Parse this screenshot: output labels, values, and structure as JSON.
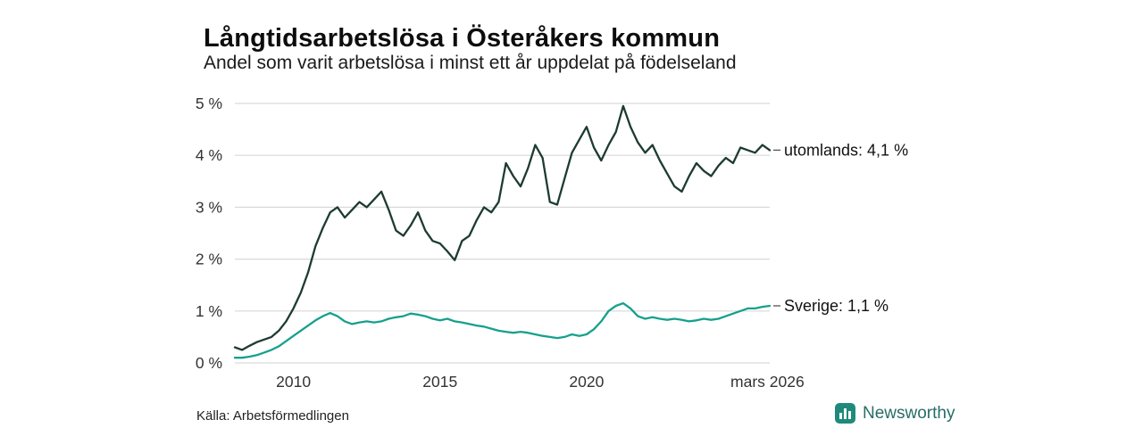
{
  "header": {
    "title": "Långtidsarbetslösa i Österåkers kommun",
    "subtitle": "Andel som varit arbetslösa i minst ett år uppdelat på födelseland"
  },
  "footer": {
    "source": "Källa: Arbetsförmedlingen",
    "brand": "Newsworthy"
  },
  "colors": {
    "utomlands_line": "#1d3b32",
    "sverige_line": "#17a08c",
    "grid": "#d9d9d9",
    "tick_text": "#333333",
    "label_text": "#111111",
    "brand_teal": "#1f8a7b"
  },
  "chart_data": {
    "type": "line",
    "title": "Långtidsarbetslösa i Österåkers kommun",
    "subtitle": "Andel som varit arbetslösa i minst ett år uppdelat på födelseland",
    "grid": true,
    "legend_position": "end-labels-right",
    "xlim": [
      2008,
      2026.25
    ],
    "ylim": [
      0,
      5
    ],
    "x_ticks": [
      {
        "x": 2010,
        "label": "2010"
      },
      {
        "x": 2015,
        "label": "2015"
      },
      {
        "x": 2020,
        "label": "2020"
      },
      {
        "x": 2026.17,
        "label": "mars 2026"
      }
    ],
    "y_ticks": [
      {
        "y": 0,
        "label": "0 %"
      },
      {
        "y": 1,
        "label": "1 %"
      },
      {
        "y": 2,
        "label": "2 %"
      },
      {
        "y": 3,
        "label": "3 %"
      },
      {
        "y": 4,
        "label": "4 %"
      },
      {
        "y": 5,
        "label": "5 %"
      }
    ],
    "x": [
      2008,
      2008.25,
      2008.5,
      2008.75,
      2009,
      2009.25,
      2009.5,
      2009.75,
      2010,
      2010.25,
      2010.5,
      2010.75,
      2011,
      2011.25,
      2011.5,
      2011.75,
      2012,
      2012.25,
      2012.5,
      2012.75,
      2013,
      2013.25,
      2013.5,
      2013.75,
      2014,
      2014.25,
      2014.5,
      2014.75,
      2015,
      2015.25,
      2015.5,
      2015.75,
      2016,
      2016.25,
      2016.5,
      2016.75,
      2017,
      2017.25,
      2017.5,
      2017.75,
      2018,
      2018.25,
      2018.5,
      2018.75,
      2019,
      2019.25,
      2019.5,
      2019.75,
      2020,
      2020.25,
      2020.5,
      2020.75,
      2021,
      2021.25,
      2021.5,
      2021.75,
      2022,
      2022.25,
      2022.5,
      2022.75,
      2023,
      2023.25,
      2023.5,
      2023.75,
      2024,
      2024.25,
      2024.5,
      2024.75,
      2025,
      2025.25,
      2025.5,
      2025.75,
      2026,
      2026.25
    ],
    "series": [
      {
        "name": "utomlands",
        "label": "utomlands: 4,1 %",
        "last_value": "4,1 %",
        "color": "#1d3b32",
        "values": [
          0.3,
          0.25,
          0.33,
          0.4,
          0.45,
          0.5,
          0.62,
          0.8,
          1.05,
          1.35,
          1.75,
          2.25,
          2.6,
          2.9,
          3.0,
          2.8,
          2.95,
          3.1,
          3.0,
          3.15,
          3.3,
          2.95,
          2.55,
          2.45,
          2.65,
          2.9,
          2.55,
          2.35,
          2.3,
          2.15,
          1.98,
          2.35,
          2.45,
          2.75,
          3.0,
          2.9,
          3.1,
          3.85,
          3.6,
          3.4,
          3.75,
          4.2,
          3.95,
          3.1,
          3.05,
          3.55,
          4.05,
          4.3,
          4.55,
          4.15,
          3.9,
          4.2,
          4.45,
          4.95,
          4.55,
          4.25,
          4.05,
          4.2,
          3.9,
          3.65,
          3.4,
          3.3,
          3.6,
          3.85,
          3.7,
          3.6,
          3.8,
          3.95,
          3.85,
          4.15,
          4.1,
          4.05,
          4.2,
          4.1
        ]
      },
      {
        "name": "Sverige",
        "label": "Sverige: 1,1 %",
        "last_value": "1,1 %",
        "color": "#17a08c",
        "values": [
          0.1,
          0.1,
          0.12,
          0.15,
          0.2,
          0.25,
          0.32,
          0.42,
          0.52,
          0.62,
          0.72,
          0.82,
          0.9,
          0.96,
          0.9,
          0.8,
          0.75,
          0.78,
          0.8,
          0.78,
          0.8,
          0.85,
          0.88,
          0.9,
          0.95,
          0.93,
          0.9,
          0.85,
          0.82,
          0.85,
          0.8,
          0.78,
          0.75,
          0.72,
          0.7,
          0.66,
          0.62,
          0.6,
          0.58,
          0.6,
          0.58,
          0.55,
          0.52,
          0.5,
          0.48,
          0.5,
          0.55,
          0.52,
          0.55,
          0.65,
          0.8,
          1.0,
          1.1,
          1.15,
          1.05,
          0.9,
          0.85,
          0.88,
          0.85,
          0.83,
          0.85,
          0.83,
          0.8,
          0.82,
          0.85,
          0.83,
          0.85,
          0.9,
          0.95,
          1.0,
          1.05,
          1.05,
          1.08,
          1.1
        ]
      }
    ]
  }
}
